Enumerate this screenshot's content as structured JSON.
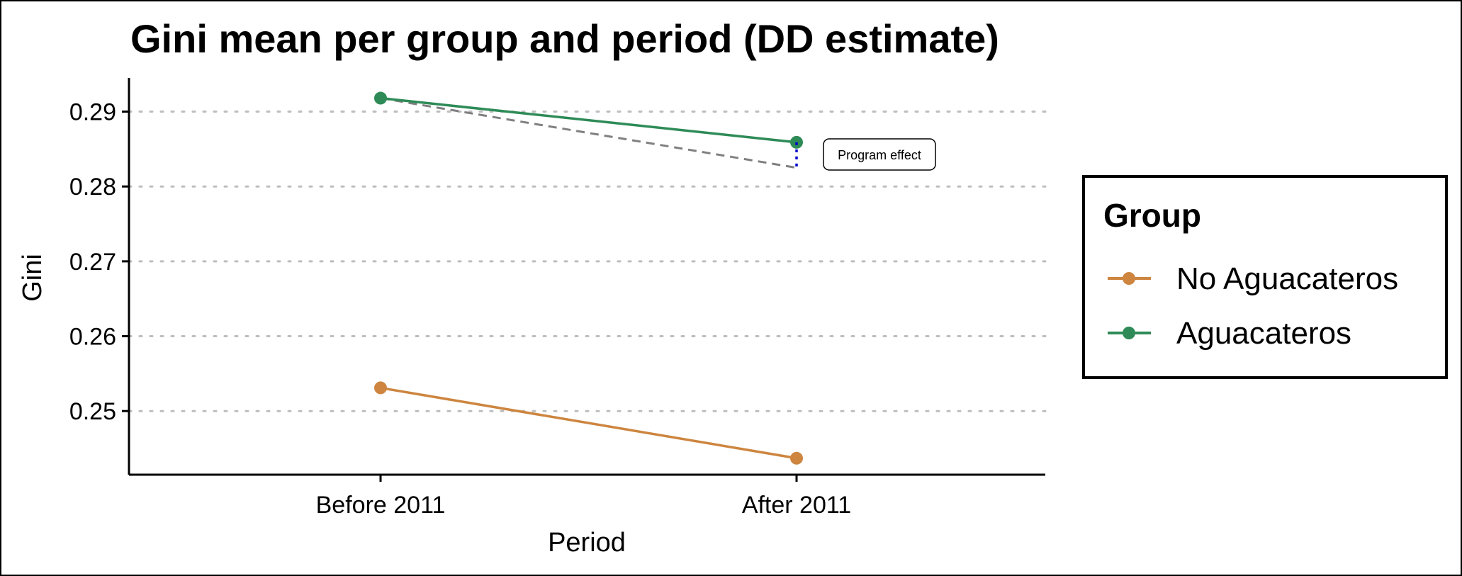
{
  "chart_data": {
    "type": "line",
    "title": "Gini mean per group and period (DD estimate)",
    "xlabel": "Period",
    "ylabel": "Gini",
    "categories": [
      "Before 2011",
      "After 2011"
    ],
    "ylim": [
      0.2415,
      0.2945
    ],
    "yticks": [
      0.25,
      0.26,
      0.27,
      0.28,
      0.29
    ],
    "ytick_labels": [
      "0.25",
      "0.26",
      "0.27",
      "0.28",
      "0.29"
    ],
    "grid": "horizontal dotted",
    "series": [
      {
        "name": "No Aguacateros",
        "values": [
          0.2531,
          0.2437
        ],
        "color": "#CD853F"
      },
      {
        "name": "Aguacateros",
        "values": [
          0.2918,
          0.2859
        ],
        "color": "#2E8B57"
      }
    ],
    "counterfactual": {
      "values": [
        0.2918,
        0.2825
      ],
      "color": "#808080",
      "style": "dashed"
    },
    "annotation": {
      "text": "Program effect",
      "color": "#0000CD"
    },
    "legend": {
      "title": "Group",
      "placement": "right"
    }
  }
}
